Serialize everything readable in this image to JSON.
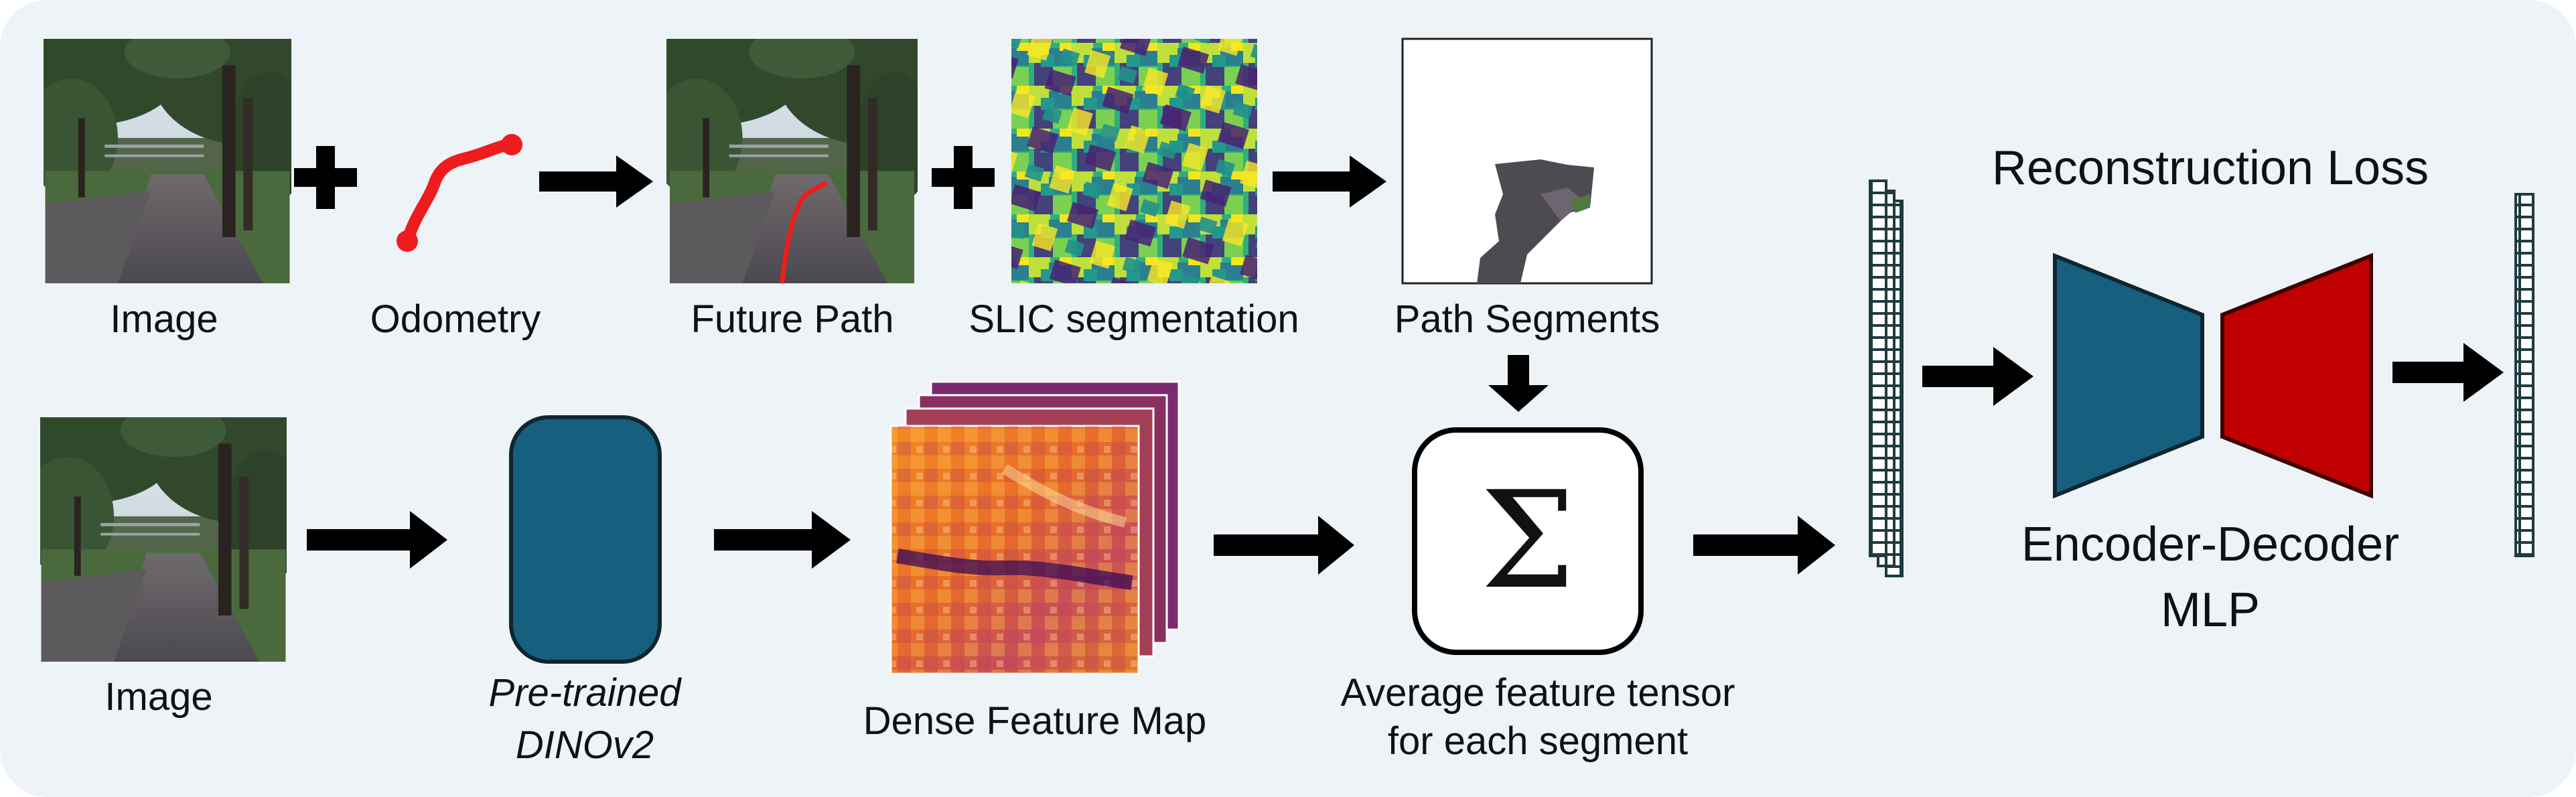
{
  "labels": {
    "image_top": "Image",
    "odometry": "Odometry",
    "future_path": "Future Path",
    "slic": "SLIC segmentation",
    "path_segments": "Path Segments",
    "image_bottom": "Image",
    "pretrained": "Pre-trained",
    "dinov2": "DINOv2",
    "dense_feature_map": "Dense Feature Map",
    "average_line1": "Average feature tensor",
    "average_line2": "for each segment",
    "reconstruction_loss": "Reconstruction Loss",
    "encoder_decoder": "Encoder-Decoder",
    "mlp": "MLP",
    "sigma_symbol": "Σ"
  },
  "colors": {
    "panel_background": "#eef3f8",
    "encoder": "#165f7f",
    "decoder": "#c00000",
    "dino_block": "#165f7f",
    "odometry_path": "#ee1c1c",
    "arrow": "#000000"
  }
}
